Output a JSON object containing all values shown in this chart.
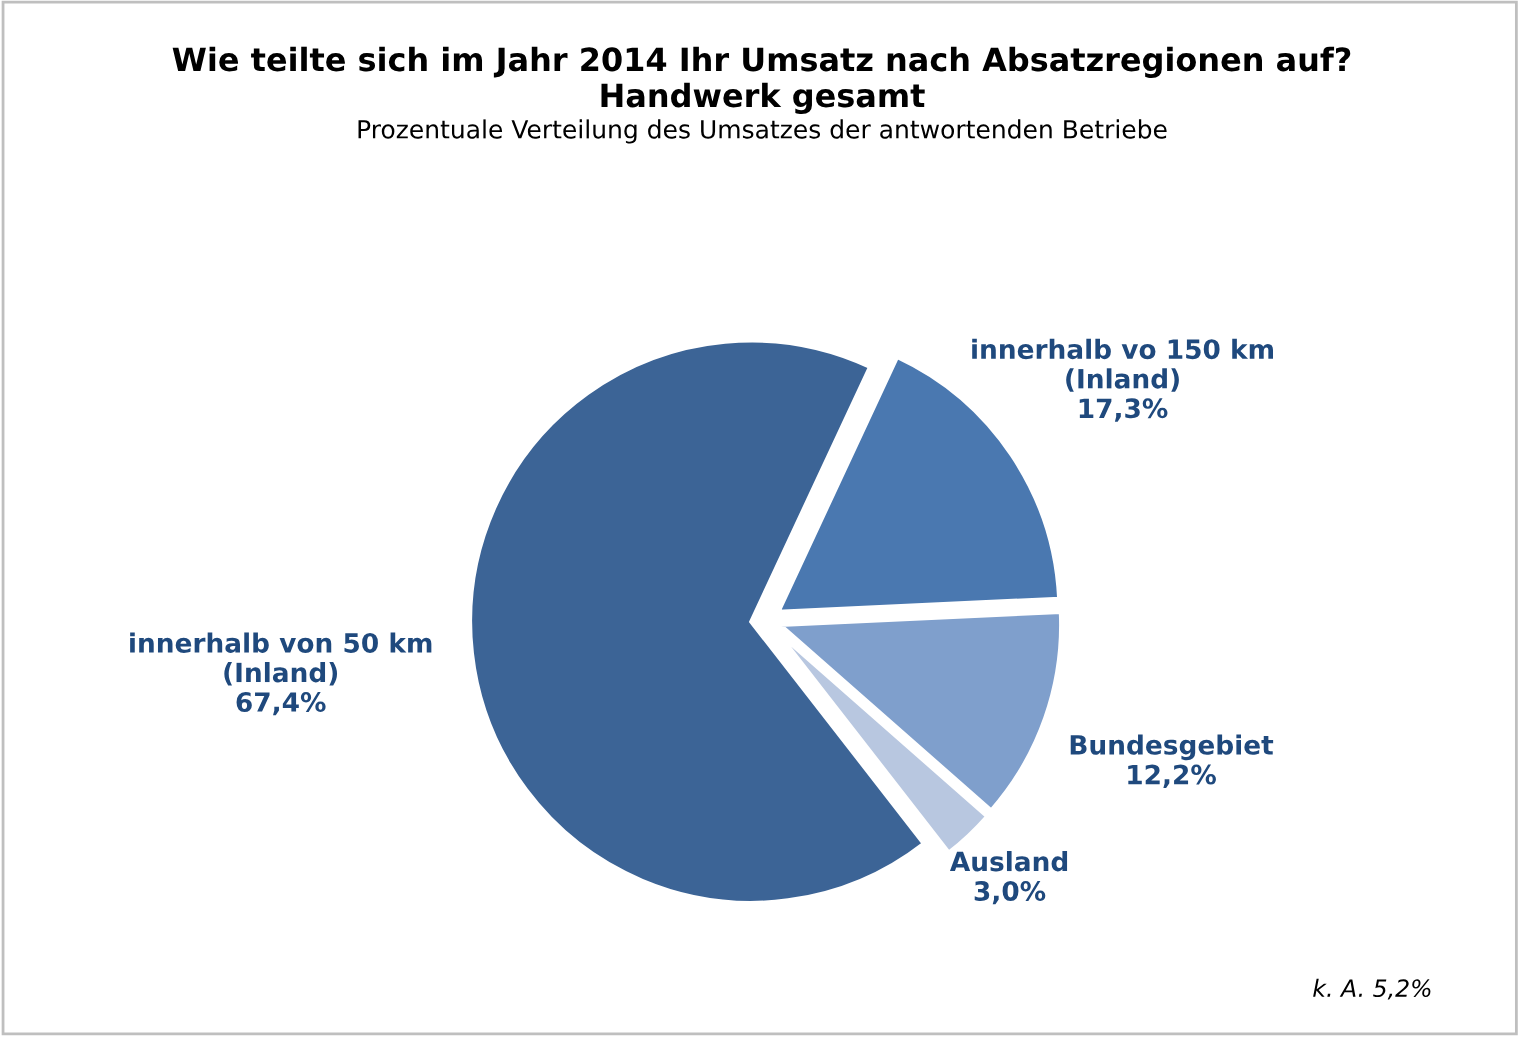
{
  "chart_data": {
    "type": "pie",
    "title": "Wie teilte sich im Jahr 2014 Ihr Umsatz nach Absatzregionen auf?\nHandwerk gesamt",
    "subtitle": "Prozentuale Verteilung des Umsatzes der antwortenden Betriebe",
    "categories": [
      "innerhalb vo 150 km\n(Inland)",
      "Bundesgebiet",
      "Ausland",
      "innerhalb von 50 km\n(Inland)"
    ],
    "values": [
      17.3,
      12.2,
      3.0,
      67.4
    ],
    "value_labels": [
      "17,3%",
      "12,2%",
      "3,0%",
      "67,4%"
    ],
    "colors": [
      "#4a78b0",
      "#7f9fcc",
      "#b8c7e0",
      "#3c6496"
    ],
    "annotations": [
      "k. A. 5,2%"
    ]
  }
}
